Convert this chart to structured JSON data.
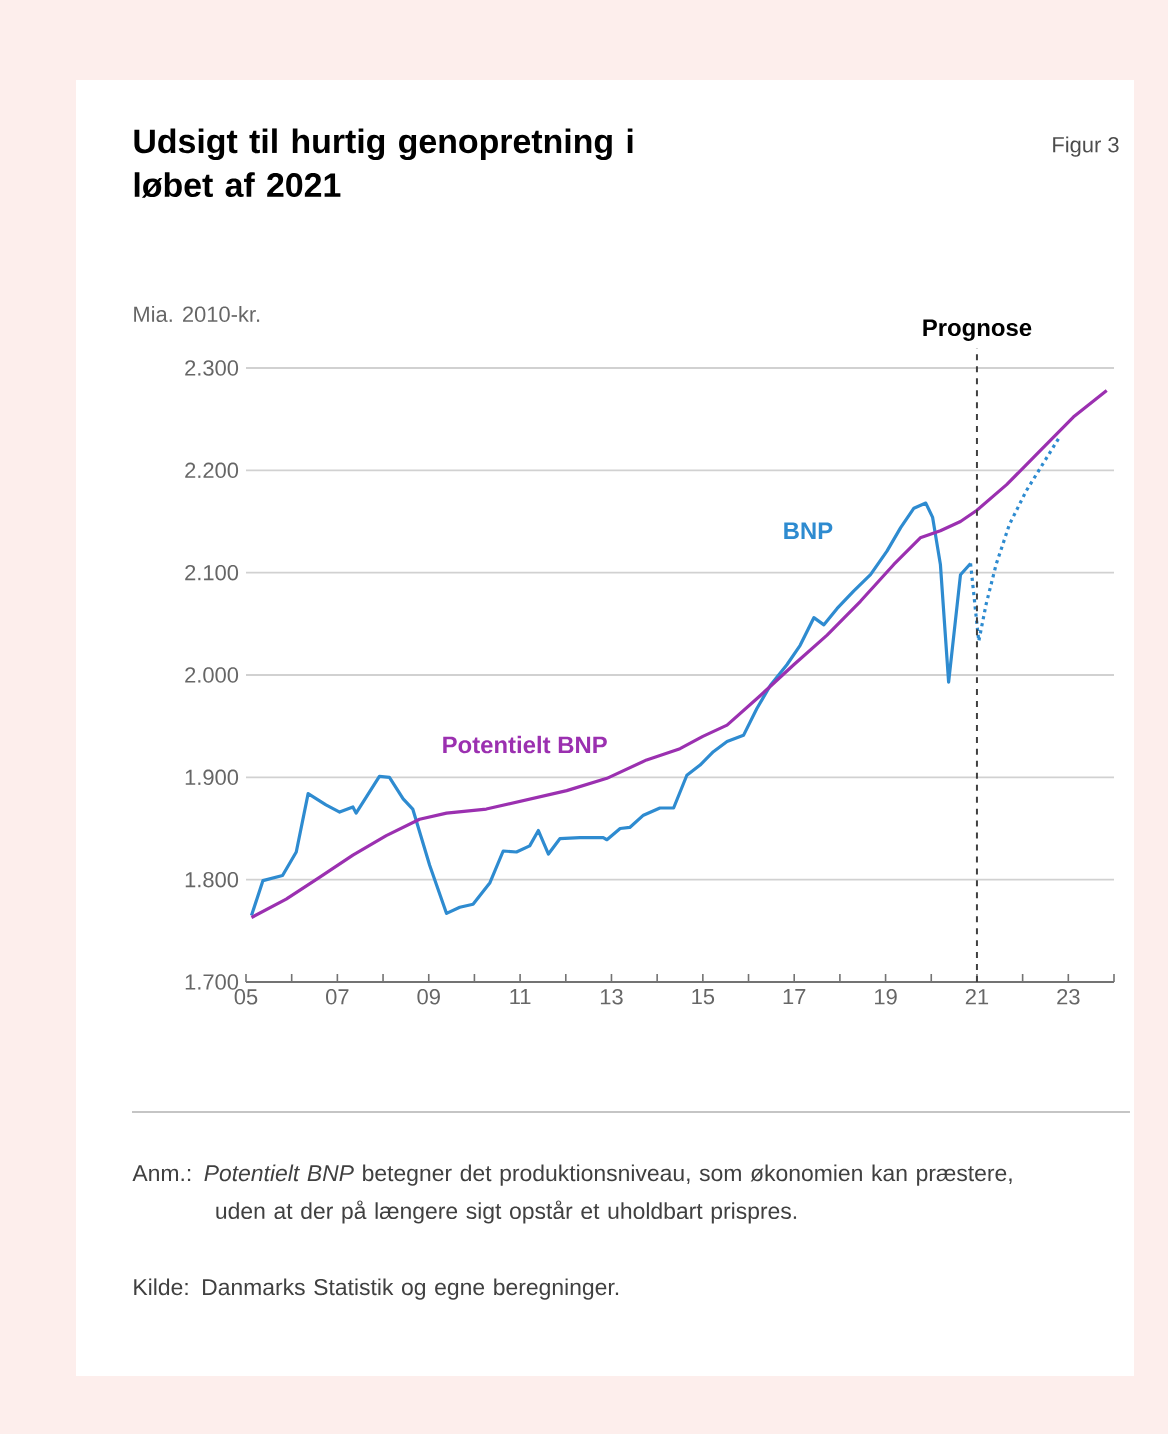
{
  "chart_data": {
    "type": "line",
    "title": "Udsigt til hurtig genopretning i løbet af 2021",
    "ylabel": "Mia. 2010-kr.",
    "annotations": [
      "Figur 3",
      "Anm.: *Potentielt BNP* betegner det produktionsniveau, som økonomien kan præstere, uden at der på længere sigt opstår et uholdbart prispres.",
      "Kilde: Danmarks Statistik og egne beregninger."
    ],
    "xlim": [
      2005,
      2024
    ],
    "xticks": [
      {
        "value": 2005,
        "label": "05"
      },
      {
        "value": 2006,
        "label": null
      },
      {
        "value": 2007,
        "label": "07"
      },
      {
        "value": 2008,
        "label": null
      },
      {
        "value": 2009,
        "label": "09"
      },
      {
        "value": 2010,
        "label": null
      },
      {
        "value": 2011,
        "label": "11"
      },
      {
        "value": 2012,
        "label": null
      },
      {
        "value": 2013,
        "label": "13"
      },
      {
        "value": 2014,
        "label": null
      },
      {
        "value": 2015,
        "label": "15"
      },
      {
        "value": 2016,
        "label": null
      },
      {
        "value": 2017,
        "label": "17"
      },
      {
        "value": 2018,
        "label": null
      },
      {
        "value": 2019,
        "label": "19"
      },
      {
        "value": 2020,
        "label": null
      },
      {
        "value": 2021,
        "label": "21"
      },
      {
        "value": 2022,
        "label": null
      },
      {
        "value": 2023,
        "label": "23"
      },
      {
        "value": 2024,
        "label": null
      }
    ],
    "ylim": [
      1700,
      2300
    ],
    "yticks": [
      {
        "value": 1700,
        "label": "1.700"
      },
      {
        "value": 1800,
        "label": "1.800"
      },
      {
        "value": 1900,
        "label": "1.900"
      },
      {
        "value": 2000,
        "label": "2.000"
      },
      {
        "value": 2100,
        "label": "2.100"
      },
      {
        "value": 2200,
        "label": "2.200"
      },
      {
        "value": 2300,
        "label": "2.300"
      }
    ],
    "grid": "y",
    "marker": "none",
    "ref_lines": [
      {
        "axis": "x",
        "value": 2021,
        "label": "Prognose",
        "color": "#404040",
        "line_style": "dashed"
      }
    ],
    "series": [
      {
        "name": "BNP",
        "color": "#2e8bd0",
        "line_style": "solid",
        "x": [
          2005.12,
          2005.37,
          2005.8,
          2006.1,
          2006.36,
          2006.75,
          2007.05,
          2007.34,
          2007.41,
          2007.92,
          2008.14,
          2008.44,
          2008.65,
          2009.02,
          2009.39,
          2009.68,
          2009.97,
          2010.34,
          2010.63,
          2010.92,
          2011.21,
          2011.4,
          2011.62,
          2011.87,
          2012.31,
          2012.82,
          2012.9,
          2013.19,
          2013.4,
          2013.7,
          2014.06,
          2014.36,
          2014.65,
          2014.94,
          2015.23,
          2015.53,
          2015.89,
          2016.18,
          2016.48,
          2016.84,
          2017.13,
          2017.43,
          2017.65,
          2017.94,
          2018.3,
          2018.67,
          2019.03,
          2019.33,
          2019.62,
          2019.88,
          2020.03,
          2020.2,
          2020.38,
          2020.64,
          2020.86
        ],
        "values": [
          1765,
          1799,
          1804,
          1827,
          1884,
          1873,
          1866,
          1871,
          1865,
          1901,
          1900,
          1879,
          1869,
          1814,
          1767,
          1773,
          1776,
          1797,
          1828,
          1827,
          1833,
          1848,
          1825,
          1840,
          1841,
          1841,
          1839,
          1850,
          1851,
          1863,
          1870,
          1870,
          1902,
          1912,
          1925,
          1935,
          1941,
          1967,
          1990,
          2010,
          2029,
          2056,
          2049,
          2065,
          2082,
          2098,
          2121,
          2144,
          2163,
          2168,
          2154,
          2108,
          1993,
          2098,
          2109
        ]
      },
      {
        "color": "#2e8bd0",
        "line_style": "dotted",
        "x": [
          2020.86,
          2021.04,
          2021.2,
          2021.42,
          2021.71,
          2022.08,
          2022.44,
          2022.8
        ],
        "values": [
          2109,
          2033,
          2069,
          2108,
          2147,
          2180,
          2206,
          2232
        ]
      },
      {
        "name": "Potentielt BNP",
        "color": "#9b30b0",
        "line_style": "solid",
        "x": [
          2005.12,
          2005.88,
          2006.6,
          2007.34,
          2008.07,
          2008.8,
          2009.39,
          2010.26,
          2011.14,
          2012.02,
          2012.9,
          2013.77,
          2014.5,
          2015.0,
          2015.53,
          2016.26,
          2016.99,
          2017.72,
          2018.45,
          2019.18,
          2019.76,
          2020.2,
          2020.64,
          2021.0,
          2021.65,
          2022.38,
          2023.11,
          2023.84
        ],
        "values": [
          1763,
          1781,
          1802,
          1824,
          1843,
          1859,
          1865,
          1869,
          1878,
          1887,
          1899,
          1917,
          1928,
          1940,
          1951,
          1980,
          2010,
          2039,
          2072,
          2108,
          2134,
          2141,
          2150,
          2161,
          2186,
          2219,
          2252,
          2278
        ]
      }
    ]
  }
}
